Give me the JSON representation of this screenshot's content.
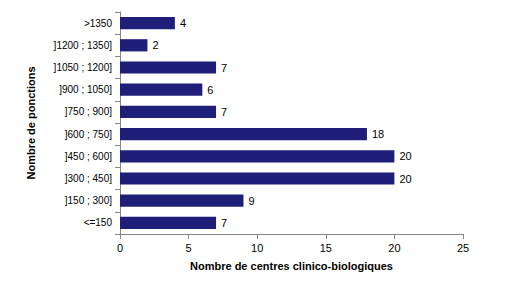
{
  "chart_data": {
    "type": "bar",
    "orientation": "horizontal",
    "x_label": "Nombre de centres clinico-biologiques",
    "y_label": "Nombre de ponctions",
    "categories": [
      "<=150",
      "]150 ; 300]",
      "]300 ; 450]",
      "]450 ; 600]",
      "]600 ; 750]",
      "]750 ; 900]",
      "]900 ; 1050]",
      "]1050 ; 1200]",
      "]1200 ; 1350]",
      ">1350"
    ],
    "values": [
      7,
      9,
      20,
      20,
      18,
      7,
      6,
      7,
      2,
      4
    ],
    "color": "#1f1f7a",
    "xlim": [
      0,
      25
    ],
    "xticks": [
      0,
      5,
      10,
      15,
      20,
      25
    ],
    "grid": false,
    "data_labels": true
  }
}
